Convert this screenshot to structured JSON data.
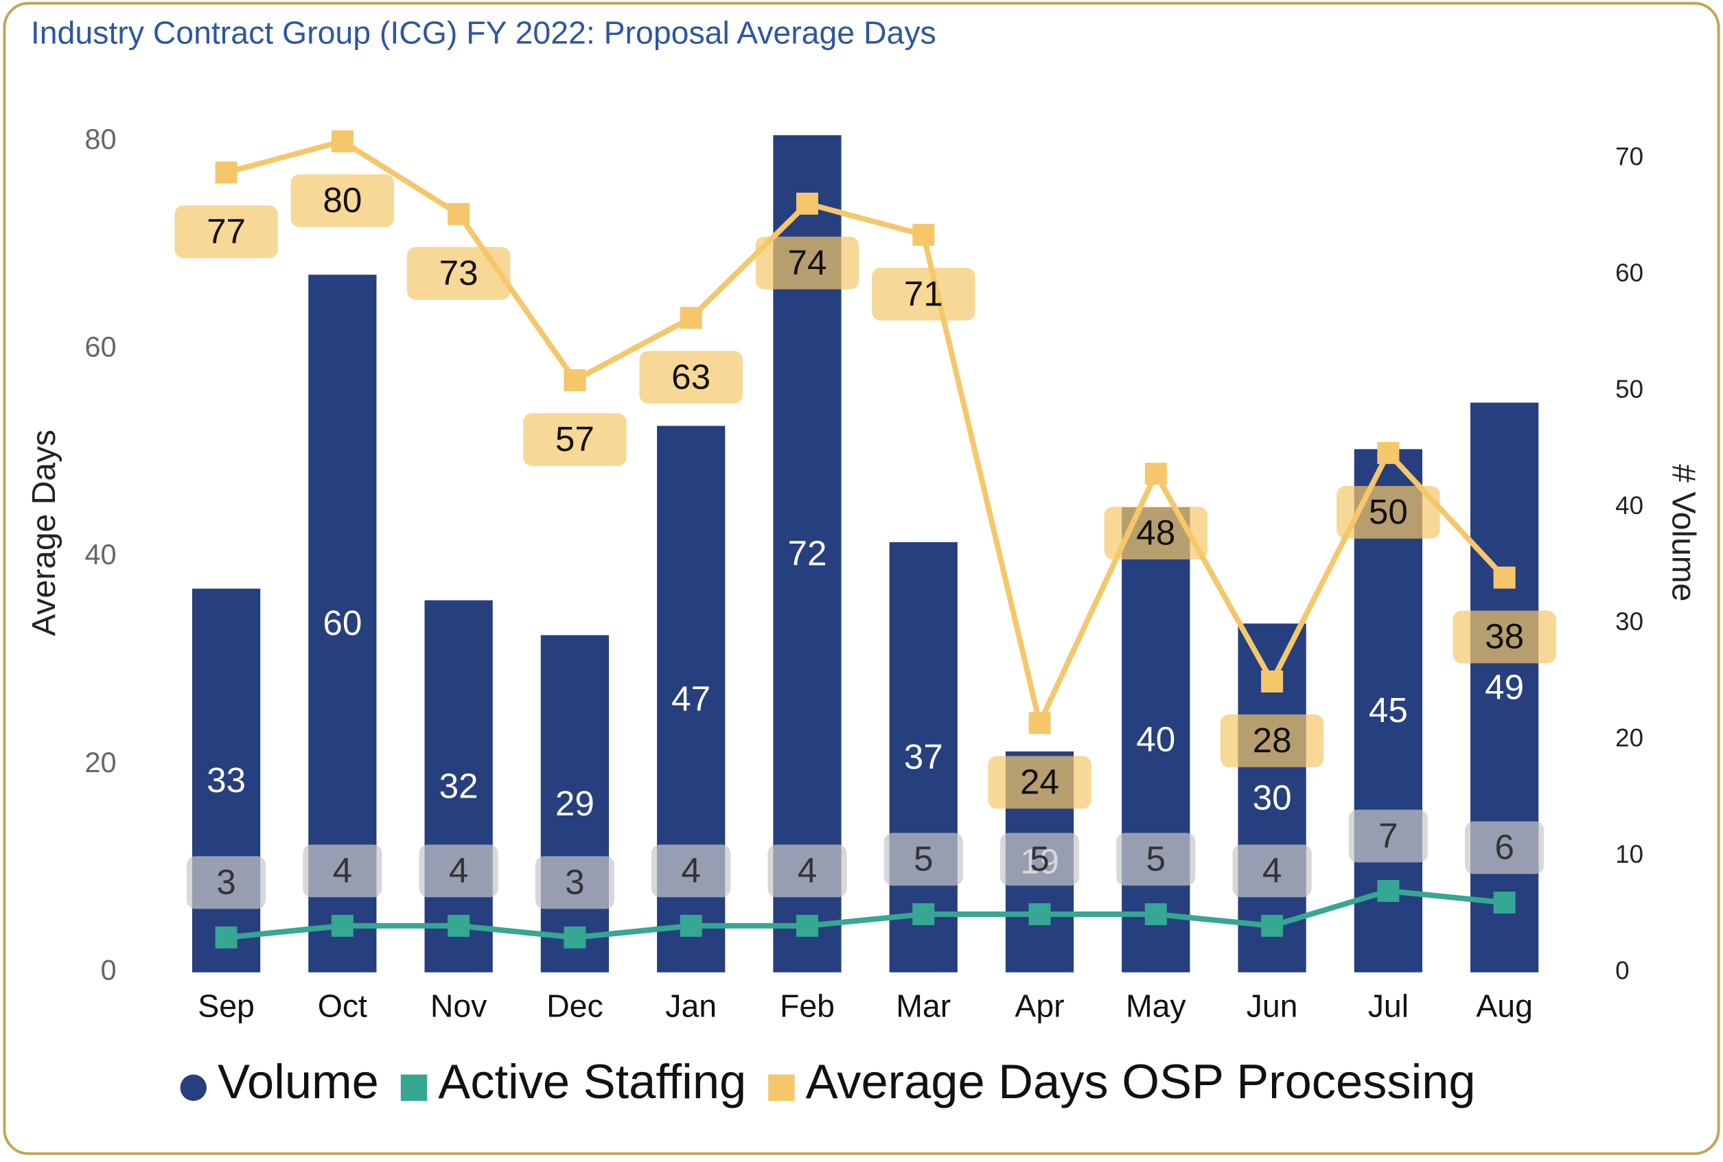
{
  "chart_data": {
    "type": "bar_line",
    "title": "Industry Contract Group (ICG) FY 2022: Proposal Average Days",
    "ylabel": "Average Days",
    "y2label": "# Volume",
    "categories": [
      "Sep",
      "Oct",
      "Nov",
      "Dec",
      "Jan",
      "Feb",
      "Mar",
      "Apr",
      "May",
      "Jun",
      "Jul",
      "Aug"
    ],
    "series": [
      {
        "name": "Volume",
        "type": "bar",
        "axis": "y2",
        "color": "#263f7e",
        "values": [
          33,
          60,
          32,
          29,
          47,
          72,
          37,
          19,
          40,
          30,
          45,
          49
        ]
      },
      {
        "name": "Active Staffing",
        "type": "line",
        "axis": "y2",
        "color": "#35a792",
        "values": [
          3,
          4,
          4,
          3,
          4,
          4,
          5,
          5,
          5,
          4,
          7,
          6
        ]
      },
      {
        "name": "Average Days OSP Processing",
        "type": "line",
        "axis": "y",
        "color": "#f5c76a",
        "values": [
          77,
          80,
          73,
          57,
          63,
          74,
          71,
          24,
          48,
          28,
          50,
          38
        ]
      }
    ],
    "ylim": [
      0,
      80.7
    ],
    "yticks": [
      0,
      20,
      40,
      60,
      80
    ],
    "y2lim": [
      0,
      72.1
    ],
    "y2ticks": [
      0,
      10,
      20,
      30,
      40,
      50,
      60,
      70
    ]
  }
}
